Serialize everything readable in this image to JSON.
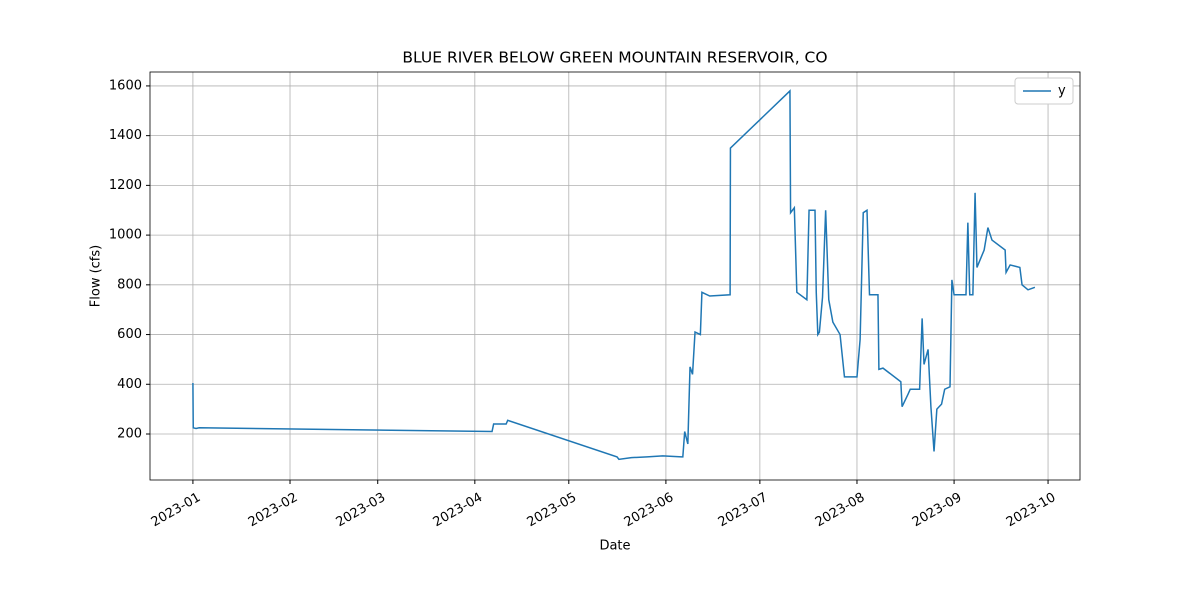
{
  "chart_data": {
    "type": "line",
    "title": "BLUE RIVER BELOW GREEN MOUNTAIN RESERVOIR, CO",
    "x_label": "Date",
    "y_label": "Flow (cfs)",
    "xlim": [
      -13.7,
      283.2
    ],
    "ylim": [
      15,
      1656
    ],
    "xticks": [
      {
        "value": 0,
        "label": "2023-01"
      },
      {
        "value": 31,
        "label": "2023-02"
      },
      {
        "value": 59,
        "label": "2023-03"
      },
      {
        "value": 90,
        "label": "2023-04"
      },
      {
        "value": 120,
        "label": "2023-05"
      },
      {
        "value": 151,
        "label": "2023-06"
      },
      {
        "value": 181,
        "label": "2023-07"
      },
      {
        "value": 212,
        "label": "2023-08"
      },
      {
        "value": 243,
        "label": "2023-09"
      },
      {
        "value": 273,
        "label": "2023-10"
      }
    ],
    "yticks": [
      200,
      400,
      600,
      800,
      1000,
      1200,
      1400,
      1600
    ],
    "grid": true,
    "legend": "upper right",
    "series": [
      {
        "name": "y",
        "color": "#1f77b4",
        "x": [
          0,
          0.1,
          1,
          2,
          95.5,
          96,
          100,
          100.5,
          135.4,
          136,
          140,
          145,
          150,
          156,
          156.4,
          157,
          158,
          158.7,
          159.5,
          160.3,
          162,
          162.5,
          165,
          171.5,
          171.6,
          190.6,
          190.8,
          192,
          192.8,
          196,
          196.7,
          198.6,
          199,
          199.5,
          200,
          201,
          202,
          203,
          204.3,
          206.6,
          208,
          212,
          213,
          214,
          215.2,
          216,
          218.7,
          219,
          220.3,
          226,
          226.4,
          228.3,
          229,
          232,
          232.8,
          233.4,
          234.7,
          235.6,
          236.6,
          237.5,
          239,
          240,
          241.7,
          242.3,
          243,
          246.8,
          247.4,
          248,
          249,
          249.7,
          250.3,
          252.6,
          253.8,
          255.1,
          259.3,
          259.6,
          260.9,
          264,
          264.7,
          266.6,
          268.8
        ],
        "values": [
          405,
          225,
          222,
          225,
          210,
          240,
          240,
          255,
          108,
          98,
          105,
          108,
          112,
          108,
          108,
          210,
          160,
          470,
          440,
          610,
          600,
          770,
          755,
          760,
          1350,
          1580,
          1090,
          1110,
          770,
          740,
          1100,
          1100,
          770,
          600,
          610,
          750,
          1100,
          740,
          650,
          600,
          430,
          430,
          580,
          1090,
          1100,
          760,
          760,
          460,
          465,
          410,
          310,
          360,
          380,
          380,
          665,
          480,
          540,
          310,
          130,
          300,
          320,
          380,
          390,
          820,
          760,
          760,
          1050,
          760,
          760,
          1170,
          870,
          940,
          1030,
          980,
          940,
          850,
          880,
          870,
          800,
          780,
          790
        ]
      }
    ]
  }
}
